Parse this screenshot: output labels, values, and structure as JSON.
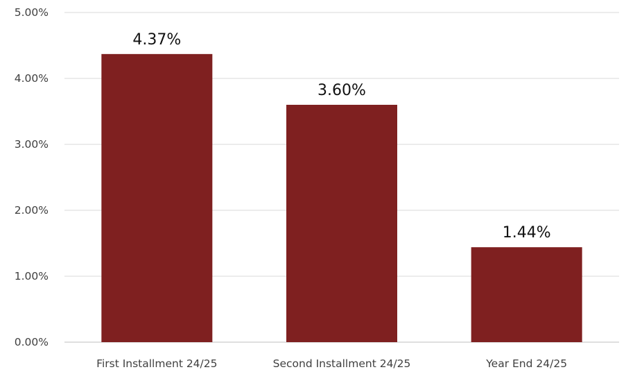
{
  "chart_data": {
    "type": "bar",
    "categories": [
      "First Installment 24/25",
      "Second Installment 24/25",
      "Year End 24/25"
    ],
    "values": [
      4.37,
      3.6,
      1.44
    ],
    "data_labels": [
      "4.37%",
      "3.60%",
      "1.44%"
    ],
    "y_ticks": [
      "0.00%",
      "1.00%",
      "2.00%",
      "3.00%",
      "4.00%",
      "5.00%"
    ],
    "ylim": [
      0,
      5
    ],
    "ytick_step": 1,
    "grid": true,
    "legend": "none",
    "bar_color": "#7f2020"
  }
}
